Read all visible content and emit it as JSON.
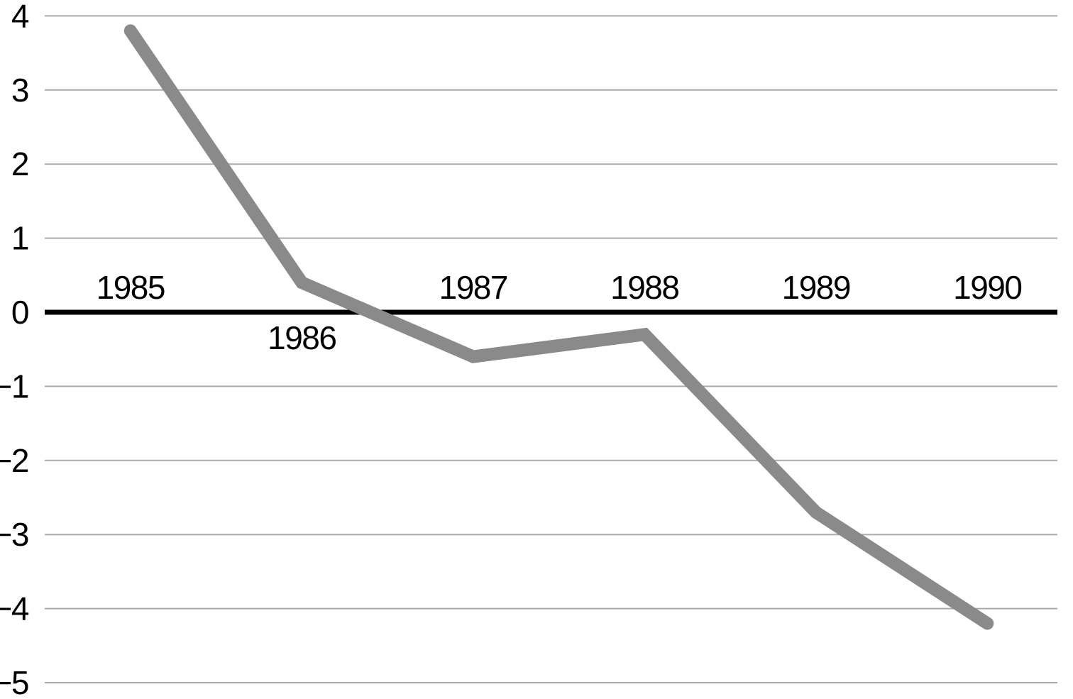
{
  "chart_data": {
    "type": "line",
    "title": "",
    "xlabel": "",
    "ylabel": "",
    "x": [
      "1985",
      "1986",
      "1987",
      "1988",
      "1989",
      "1990"
    ],
    "values": [
      3.8,
      0.4,
      -0.6,
      -0.3,
      -2.7,
      -4.2
    ],
    "ylim": [
      -5,
      4
    ],
    "yticks": [
      4,
      3,
      2,
      1,
      0,
      -1,
      -2,
      -3,
      -4,
      -5
    ],
    "grid": true,
    "legend": false,
    "zero_axis_emphasized": true,
    "x_label_position": "near-zero-axis",
    "x_label_sides": [
      "above",
      "below",
      "above",
      "above",
      "above",
      "above"
    ],
    "colors": {
      "line": "#8a8a8a",
      "gridline": "#aaaaaa",
      "zero_axis": "#000000",
      "text": "#000000",
      "background": "#ffffff"
    }
  }
}
